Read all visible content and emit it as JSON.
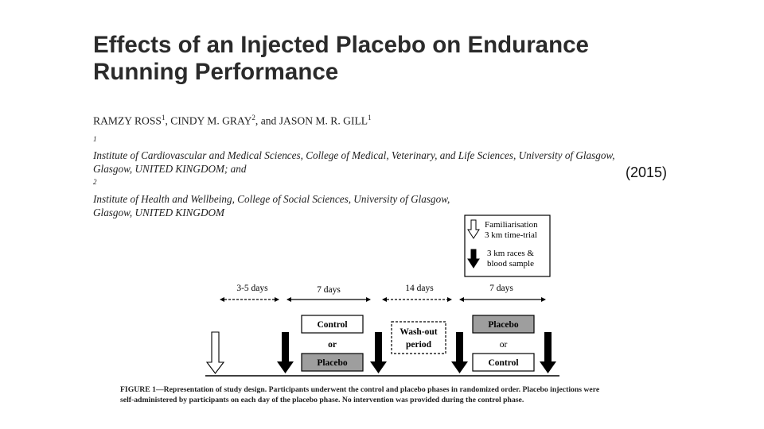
{
  "paper": {
    "title_line1": "Effects of an Injected Placebo on Endurance",
    "title_line2": "Running Performance",
    "author1": "RAMZY ROSS",
    "author1_sup": "1",
    "author2": ", CINDY M. GRAY",
    "author2_sup": "2",
    "author3": ", and JASON M. R. GILL",
    "author3_sup": "1",
    "affil_sup1": "1",
    "affil_line1": "Institute of Cardiovascular and Medical Sciences, College of Medical, Veterinary, and Life Sciences, University of Glasgow,",
    "affil_line2a": "Glasgow, UNITED KINGDOM; and ",
    "affil_sup2": "2",
    "affil_line2b": "Institute of Health and Wellbeing, College of Social Sciences, University of Glasgow,",
    "affil_line3": "Glasgow, UNITED KINGDOM",
    "year": "(2015)"
  },
  "figure": {
    "legend_line1": "Familiarisation",
    "legend_line2": "3 km time-trial",
    "legend_line3": "3 km races &",
    "legend_line4": "blood sample",
    "period1": "3-5 days",
    "period2": "7 days",
    "period3": "14 days",
    "period4": "7 days",
    "control": "Control",
    "or": "or",
    "placebo": "Placebo",
    "washout_line1": "Wash-out",
    "washout_line2": "period",
    "caption_line1": "FIGURE 1—Representation of study design. Participants underwent the control and placebo phases in randomized order. Placebo injections were",
    "caption_line2": "self-administered by participants on each day of the placebo phase. No intervention was provided during the control phase."
  }
}
